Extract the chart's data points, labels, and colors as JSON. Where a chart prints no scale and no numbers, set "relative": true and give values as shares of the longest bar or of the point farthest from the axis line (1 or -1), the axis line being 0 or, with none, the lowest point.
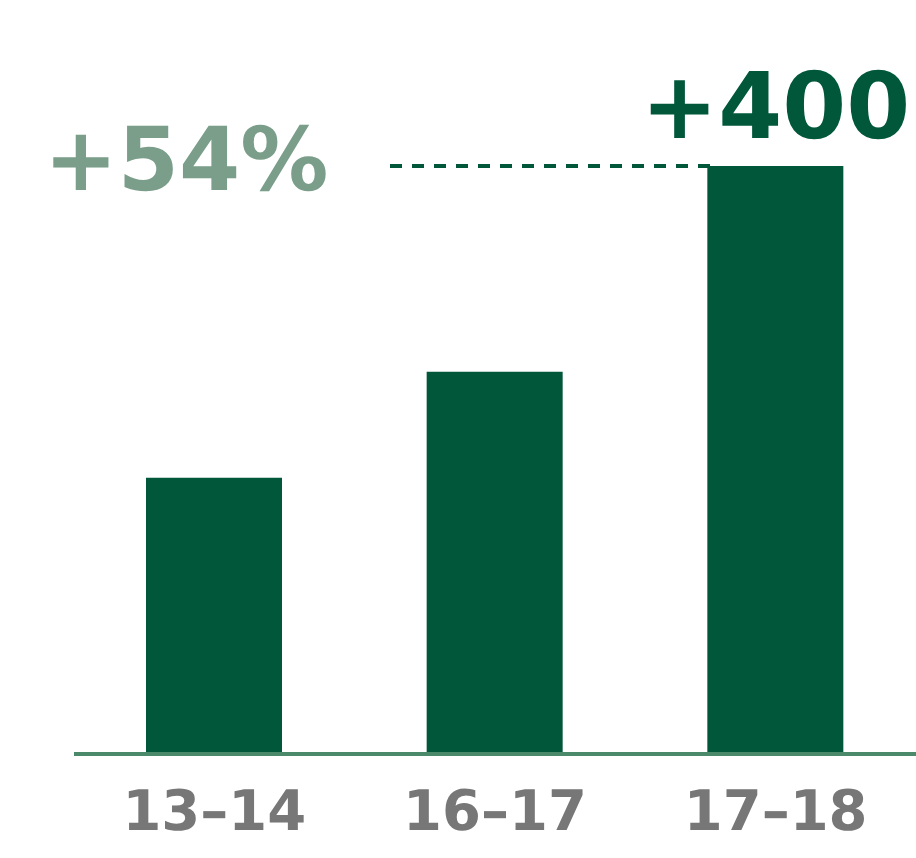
{
  "chart_data": {
    "type": "bar",
    "relative": true,
    "categories": [
      "13–14",
      "16–17",
      "17–18"
    ],
    "values": [
      0.47,
      0.65,
      1
    ],
    "color": "#00573a",
    "annotations": [
      "+54%",
      {
        "text": "+400",
        "x": "17–18",
        "y": 1
      }
    ],
    "ref_lines": [
      {
        "axis": "y",
        "value": 1,
        "color": "#00573a",
        "line_style": "dashed"
      }
    ]
  }
}
